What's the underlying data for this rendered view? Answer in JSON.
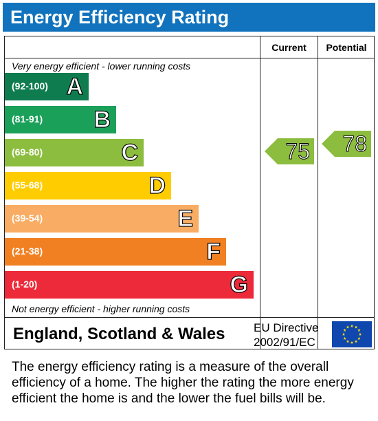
{
  "title": "Energy Efficiency Rating",
  "columns": {
    "current": "Current",
    "potential": "Potential"
  },
  "top_note": "Very energy efficient - lower running costs",
  "bottom_note": "Not energy efficient - higher running costs",
  "bands": [
    {
      "range": "(92-100)",
      "letter": "A",
      "color": "#0e7c4f"
    },
    {
      "range": "(81-91)",
      "letter": "B",
      "color": "#1ba05a"
    },
    {
      "range": "(69-80)",
      "letter": "C",
      "color": "#8cbd3f"
    },
    {
      "range": "(55-68)",
      "letter": "D",
      "color": "#ffcc00"
    },
    {
      "range": "(39-54)",
      "letter": "E",
      "color": "#f9ac63"
    },
    {
      "range": "(21-38)",
      "letter": "F",
      "color": "#f08022"
    },
    {
      "range": "(1-20)",
      "letter": "G",
      "color": "#ec2a39"
    }
  ],
  "current_rating": {
    "value": "75",
    "band": "C",
    "color": "#8cbd3f"
  },
  "potential_rating": {
    "value": "78",
    "band": "C",
    "color": "#8cbd3f"
  },
  "footer": {
    "country": "England, Scotland & Wales",
    "directive_line1": "EU Directive",
    "directive_line2": "2002/91/EC",
    "flag_icon": "eu-flag-icon"
  },
  "description": "The energy efficiency rating is a measure of the overall efficiency of a home. The higher the rating the more energy efficient the home is and the lower the fuel bills will be."
}
